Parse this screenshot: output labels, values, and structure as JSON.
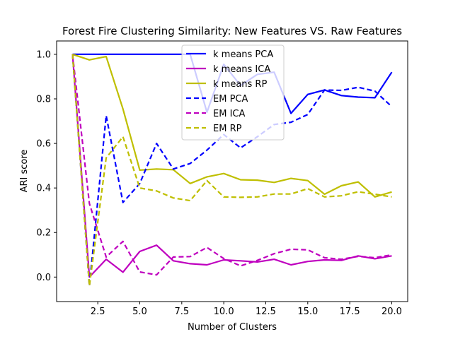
{
  "chart_data": {
    "type": "line",
    "title": "Forest Fire Clustering Similarity: New Features VS. Raw Features",
    "xlabel": "Number of Clusters",
    "ylabel": "ARI score",
    "xlim": [
      0.05,
      20.95
    ],
    "ylim": [
      -0.11,
      1.06
    ],
    "xticks": [
      2.5,
      5.0,
      7.5,
      10.0,
      12.5,
      15.0,
      17.5,
      20.0
    ],
    "xtick_labels": [
      "2.5",
      "5.0",
      "7.5",
      "10.0",
      "12.5",
      "15.0",
      "17.5",
      "20.0"
    ],
    "yticks": [
      0.0,
      0.2,
      0.4,
      0.6,
      0.8,
      1.0
    ],
    "ytick_labels": [
      "0.0",
      "0.2",
      "0.4",
      "0.6",
      "0.8",
      "1.0"
    ],
    "grid": false,
    "legend_position": "top-center",
    "x": [
      1,
      2,
      3,
      4,
      5,
      6,
      7,
      8,
      9,
      10,
      11,
      12,
      13,
      14,
      15,
      16,
      17,
      18,
      19,
      20
    ],
    "series": [
      {
        "name": "k means PCA",
        "color": "#0000ff",
        "dashed": false,
        "values": [
          1.0,
          1.0,
          1.0,
          1.0,
          1.0,
          1.0,
          1.0,
          1.0,
          0.74,
          0.955,
          0.86,
          0.91,
          0.92,
          0.735,
          0.82,
          0.84,
          0.815,
          0.808,
          0.805,
          0.92
        ]
      },
      {
        "name": "k means ICA",
        "color": "#bf00bf",
        "dashed": false,
        "values": [
          1.0,
          0.0,
          0.08,
          0.022,
          0.115,
          0.143,
          0.073,
          0.06,
          0.055,
          0.077,
          0.073,
          0.068,
          0.08,
          0.055,
          0.07,
          0.077,
          0.075,
          0.095,
          0.082,
          0.095
        ]
      },
      {
        "name": "k means RP",
        "color": "#bfbf00",
        "dashed": false,
        "values": [
          1.0,
          0.975,
          0.99,
          0.755,
          0.48,
          0.485,
          0.482,
          0.42,
          0.45,
          0.465,
          0.437,
          0.435,
          0.425,
          0.443,
          0.433,
          0.372,
          0.41,
          0.427,
          0.36,
          0.382
        ]
      },
      {
        "name": "EM PCA",
        "color": "#0000ff",
        "dashed": true,
        "values": [
          1.0,
          -0.04,
          0.725,
          0.335,
          0.42,
          0.6,
          0.485,
          0.51,
          0.57,
          0.64,
          0.58,
          0.63,
          0.685,
          0.695,
          0.73,
          0.84,
          0.838,
          0.852,
          0.835,
          0.765
        ]
      },
      {
        "name": "EM ICA",
        "color": "#bf00bf",
        "dashed": true,
        "values": [
          1.0,
          0.33,
          0.09,
          0.16,
          0.023,
          0.01,
          0.09,
          0.092,
          0.133,
          0.083,
          0.05,
          0.075,
          0.105,
          0.125,
          0.122,
          0.087,
          0.08,
          0.093,
          0.087,
          0.1
        ]
      },
      {
        "name": "EM RP",
        "color": "#bfbf00",
        "dashed": true,
        "values": [
          1.0,
          -0.04,
          0.535,
          0.63,
          0.4,
          0.387,
          0.355,
          0.343,
          0.433,
          0.36,
          0.358,
          0.36,
          0.373,
          0.373,
          0.397,
          0.36,
          0.365,
          0.383,
          0.372,
          0.36
        ]
      }
    ]
  }
}
